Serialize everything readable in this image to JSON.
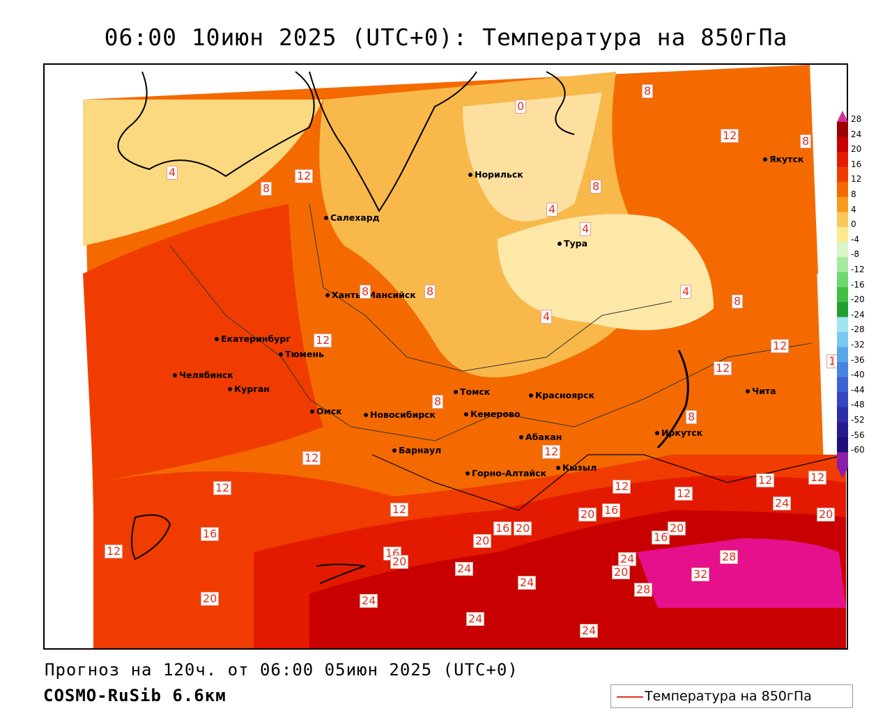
{
  "title": "06:00 10июн 2025 (UTC+0): Температура на 850гПа",
  "footer": {
    "forecast": "Прогноз на 120ч. от 06:00 05июн 2025 (UTC+0)",
    "model": "COSMO-RuSib 6.6км"
  },
  "legend": {
    "label": "Температура на 850гПа",
    "line_color": "#e0301e"
  },
  "colorbar": {
    "labels": [
      "28",
      "24",
      "20",
      "16",
      "12",
      "8",
      "4",
      "0",
      "-4",
      "-8",
      "-12",
      "-16",
      "-20",
      "-24",
      "-28",
      "-32",
      "-36",
      "-40",
      "-44",
      "-48",
      "-52",
      "-56",
      "-60"
    ],
    "colors": [
      "#9b0000",
      "#c80000",
      "#e41a00",
      "#f03c00",
      "#f46a00",
      "#f89a1c",
      "#fbc85a",
      "#fde890",
      "#d8f5c8",
      "#a6eaa0",
      "#70d870",
      "#40c040",
      "#20a030",
      "#9ee6f0",
      "#7ac8f0",
      "#5aa6ea",
      "#4684e0",
      "#3a62d4",
      "#3246c0",
      "#2c2ea8",
      "#261c92",
      "#1e0e7c",
      "#8a1fa8"
    ],
    "top_tip_color": "#d0309a",
    "bottom_tip_color": "#8a1fa8"
  },
  "cities": [
    {
      "name": "Якутск",
      "id": "yakutsk"
    },
    {
      "name": "Норильск",
      "id": "norilsk"
    },
    {
      "name": "Салехард",
      "id": "salekhard"
    },
    {
      "name": "Тура",
      "id": "tura"
    },
    {
      "name": "Ханты-Мансийск",
      "id": "khanty"
    },
    {
      "name": "Екатеринбург",
      "id": "ekaterinburg"
    },
    {
      "name": "Тюмень",
      "id": "tyumen"
    },
    {
      "name": "Челябинск",
      "id": "chelyabinsk"
    },
    {
      "name": "Курган",
      "id": "kurgan"
    },
    {
      "name": "Омск",
      "id": "omsk"
    },
    {
      "name": "Томск",
      "id": "tomsk"
    },
    {
      "name": "Новосибирск",
      "id": "novosibirsk"
    },
    {
      "name": "Кемерово",
      "id": "kemerovo"
    },
    {
      "name": "Красноярск",
      "id": "krasnoyarsk"
    },
    {
      "name": "Барнаул",
      "id": "barnaul"
    },
    {
      "name": "Абакан",
      "id": "abakan"
    },
    {
      "name": "Горно-Алтайск",
      "id": "gorno"
    },
    {
      "name": "Кызыл",
      "id": "kyzyl"
    },
    {
      "name": "Иркутск",
      "id": "irkutsk"
    },
    {
      "name": "Чита",
      "id": "chita"
    }
  ],
  "isotherm_labels": [
    "0",
    "8",
    "4",
    "12",
    "8",
    "12",
    "8",
    "4",
    "4",
    "4",
    "4",
    "8",
    "8",
    "8",
    "12",
    "12",
    "12",
    "12",
    "12",
    "12",
    "12",
    "12",
    "12",
    "12",
    "12",
    "12",
    "12",
    "16",
    "16",
    "16",
    "16",
    "16",
    "20",
    "20",
    "20",
    "20",
    "20",
    "20",
    "20",
    "20",
    "24",
    "24",
    "24",
    "24",
    "24",
    "24",
    "24",
    "28",
    "28",
    "32",
    "8",
    "8",
    "8",
    "12"
  ]
}
